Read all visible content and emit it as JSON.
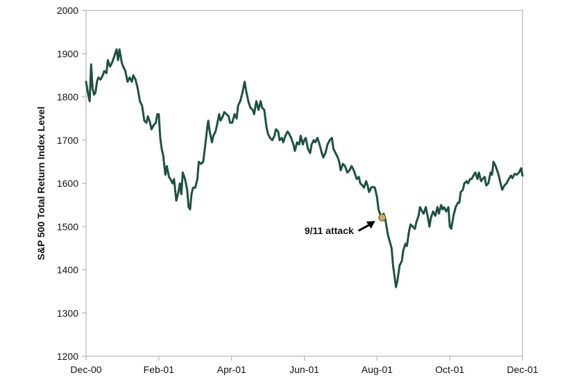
{
  "chart_data": {
    "type": "line",
    "title": "",
    "xlabel": "",
    "ylabel": "S&P 500 Total Return Index Level",
    "ylim": [
      1200,
      2000
    ],
    "yticks": [
      1200,
      1300,
      1400,
      1500,
      1600,
      1700,
      1800,
      1900,
      2000
    ],
    "xlim": [
      0,
      12
    ],
    "xticks": [
      {
        "value": 0,
        "label": "Dec-00"
      },
      {
        "value": 2,
        "label": "Feb-01"
      },
      {
        "value": 4,
        "label": "Apr-01"
      },
      {
        "value": 6,
        "label": "Jun-01"
      },
      {
        "value": 8,
        "label": "Aug-01"
      },
      {
        "value": 10,
        "label": "Oct-01"
      },
      {
        "value": 12,
        "label": "Dec-01"
      }
    ],
    "grid": false,
    "series": [
      {
        "name": "S&P 500 Total Return Index",
        "color": "#1d5141",
        "points": [
          [
            0.0,
            1835
          ],
          [
            0.06,
            1805
          ],
          [
            0.1,
            1790
          ],
          [
            0.14,
            1875
          ],
          [
            0.18,
            1820
          ],
          [
            0.22,
            1805
          ],
          [
            0.26,
            1810
          ],
          [
            0.3,
            1835
          ],
          [
            0.34,
            1845
          ],
          [
            0.4,
            1840
          ],
          [
            0.46,
            1850
          ],
          [
            0.5,
            1860
          ],
          [
            0.56,
            1855
          ],
          [
            0.6,
            1885
          ],
          [
            0.66,
            1870
          ],
          [
            0.72,
            1880
          ],
          [
            0.78,
            1895
          ],
          [
            0.84,
            1910
          ],
          [
            0.88,
            1885
          ],
          [
            0.92,
            1910
          ],
          [
            0.98,
            1880
          ],
          [
            1.02,
            1870
          ],
          [
            1.08,
            1860
          ],
          [
            1.14,
            1835
          ],
          [
            1.2,
            1845
          ],
          [
            1.26,
            1835
          ],
          [
            1.3,
            1850
          ],
          [
            1.36,
            1840
          ],
          [
            1.42,
            1820
          ],
          [
            1.48,
            1790
          ],
          [
            1.54,
            1780
          ],
          [
            1.6,
            1745
          ],
          [
            1.66,
            1740
          ],
          [
            1.7,
            1755
          ],
          [
            1.76,
            1740
          ],
          [
            1.8,
            1725
          ],
          [
            1.86,
            1735
          ],
          [
            1.92,
            1740
          ],
          [
            1.96,
            1760
          ],
          [
            2.0,
            1760
          ],
          [
            2.04,
            1705
          ],
          [
            2.08,
            1680
          ],
          [
            2.12,
            1665
          ],
          [
            2.18,
            1620
          ],
          [
            2.22,
            1640
          ],
          [
            2.28,
            1615
          ],
          [
            2.32,
            1610
          ],
          [
            2.38,
            1600
          ],
          [
            2.42,
            1610
          ],
          [
            2.48,
            1560
          ],
          [
            2.54,
            1580
          ],
          [
            2.58,
            1600
          ],
          [
            2.62,
            1575
          ],
          [
            2.66,
            1625
          ],
          [
            2.72,
            1610
          ],
          [
            2.78,
            1585
          ],
          [
            2.82,
            1545
          ],
          [
            2.86,
            1540
          ],
          [
            2.9,
            1575
          ],
          [
            2.94,
            1590
          ],
          [
            3.0,
            1590
          ],
          [
            3.06,
            1610
          ],
          [
            3.1,
            1650
          ],
          [
            3.16,
            1645
          ],
          [
            3.22,
            1650
          ],
          [
            3.28,
            1690
          ],
          [
            3.32,
            1720
          ],
          [
            3.36,
            1745
          ],
          [
            3.4,
            1720
          ],
          [
            3.46,
            1695
          ],
          [
            3.5,
            1710
          ],
          [
            3.56,
            1720
          ],
          [
            3.6,
            1735
          ],
          [
            3.66,
            1760
          ],
          [
            3.7,
            1745
          ],
          [
            3.76,
            1755
          ],
          [
            3.8,
            1765
          ],
          [
            3.86,
            1760
          ],
          [
            3.92,
            1755
          ],
          [
            3.96,
            1740
          ],
          [
            4.02,
            1740
          ],
          [
            4.08,
            1760
          ],
          [
            4.14,
            1750
          ],
          [
            4.18,
            1780
          ],
          [
            4.24,
            1790
          ],
          [
            4.3,
            1810
          ],
          [
            4.36,
            1835
          ],
          [
            4.4,
            1815
          ],
          [
            4.46,
            1790
          ],
          [
            4.52,
            1775
          ],
          [
            4.58,
            1770
          ],
          [
            4.62,
            1760
          ],
          [
            4.68,
            1790
          ],
          [
            4.74,
            1770
          ],
          [
            4.8,
            1790
          ],
          [
            4.84,
            1775
          ],
          [
            4.9,
            1770
          ],
          [
            4.96,
            1730
          ],
          [
            5.0,
            1715
          ],
          [
            5.06,
            1705
          ],
          [
            5.12,
            1700
          ],
          [
            5.18,
            1710
          ],
          [
            5.22,
            1725
          ],
          [
            5.28,
            1720
          ],
          [
            5.32,
            1700
          ],
          [
            5.38,
            1705
          ],
          [
            5.42,
            1695
          ],
          [
            5.48,
            1710
          ],
          [
            5.54,
            1720
          ],
          [
            5.58,
            1715
          ],
          [
            5.64,
            1705
          ],
          [
            5.7,
            1690
          ],
          [
            5.74,
            1675
          ],
          [
            5.8,
            1695
          ],
          [
            5.86,
            1690
          ],
          [
            5.9,
            1710
          ],
          [
            5.96,
            1690
          ],
          [
            6.0,
            1700
          ],
          [
            6.04,
            1705
          ],
          [
            6.1,
            1680
          ],
          [
            6.16,
            1670
          ],
          [
            6.2,
            1690
          ],
          [
            6.26,
            1700
          ],
          [
            6.3,
            1695
          ],
          [
            6.36,
            1705
          ],
          [
            6.42,
            1690
          ],
          [
            6.48,
            1670
          ],
          [
            6.52,
            1660
          ],
          [
            6.58,
            1670
          ],
          [
            6.64,
            1690
          ],
          [
            6.7,
            1700
          ],
          [
            6.76,
            1705
          ],
          [
            6.8,
            1680
          ],
          [
            6.86,
            1670
          ],
          [
            6.92,
            1660
          ],
          [
            6.96,
            1650
          ],
          [
            7.0,
            1630
          ],
          [
            7.06,
            1645
          ],
          [
            7.12,
            1640
          ],
          [
            7.18,
            1625
          ],
          [
            7.24,
            1630
          ],
          [
            7.3,
            1640
          ],
          [
            7.36,
            1630
          ],
          [
            7.4,
            1620
          ],
          [
            7.44,
            1610
          ],
          [
            7.5,
            1615
          ],
          [
            7.54,
            1600
          ],
          [
            7.6,
            1595
          ],
          [
            7.64,
            1590
          ],
          [
            7.7,
            1605
          ],
          [
            7.74,
            1595
          ],
          [
            7.78,
            1580
          ],
          [
            7.84,
            1590
          ],
          [
            7.88,
            1592
          ],
          [
            7.94,
            1590
          ],
          [
            8.0,
            1568
          ],
          [
            8.04,
            1540
          ],
          [
            8.08,
            1530
          ],
          [
            8.14,
            1522
          ],
          [
            8.18,
            1530
          ],
          [
            8.22,
            1520
          ],
          [
            8.26,
            1500
          ],
          [
            8.3,
            1480
          ],
          [
            8.36,
            1462
          ],
          [
            8.4,
            1450
          ],
          [
            8.44,
            1410
          ],
          [
            8.48,
            1385
          ],
          [
            8.52,
            1360
          ],
          [
            8.56,
            1375
          ],
          [
            8.62,
            1410
          ],
          [
            8.68,
            1420
          ],
          [
            8.72,
            1445
          ],
          [
            8.78,
            1460
          ],
          [
            8.82,
            1455
          ],
          [
            8.88,
            1490
          ],
          [
            8.92,
            1505
          ],
          [
            8.98,
            1500
          ],
          [
            9.04,
            1495
          ],
          [
            9.08,
            1510
          ],
          [
            9.14,
            1525
          ],
          [
            9.18,
            1545
          ],
          [
            9.24,
            1535
          ],
          [
            9.28,
            1530
          ],
          [
            9.34,
            1545
          ],
          [
            9.4,
            1520
          ],
          [
            9.44,
            1500
          ],
          [
            9.48,
            1520
          ],
          [
            9.54,
            1535
          ],
          [
            9.6,
            1525
          ],
          [
            9.66,
            1545
          ],
          [
            9.7,
            1530
          ],
          [
            9.76,
            1550
          ],
          [
            9.8,
            1540
          ],
          [
            9.84,
            1545
          ],
          [
            9.9,
            1535
          ],
          [
            9.96,
            1545
          ],
          [
            10.0,
            1500
          ],
          [
            10.04,
            1495
          ],
          [
            10.1,
            1525
          ],
          [
            10.16,
            1545
          ],
          [
            10.22,
            1555
          ],
          [
            10.26,
            1555
          ],
          [
            10.3,
            1580
          ],
          [
            10.36,
            1585
          ],
          [
            10.4,
            1600
          ],
          [
            10.46,
            1605
          ],
          [
            10.5,
            1600
          ],
          [
            10.56,
            1610
          ],
          [
            10.6,
            1610
          ],
          [
            10.66,
            1620
          ],
          [
            10.7,
            1625
          ],
          [
            10.76,
            1610
          ],
          [
            10.8,
            1625
          ],
          [
            10.86,
            1605
          ],
          [
            10.9,
            1610
          ],
          [
            10.96,
            1615
          ],
          [
            11.0,
            1595
          ],
          [
            11.06,
            1600
          ],
          [
            11.12,
            1625
          ],
          [
            11.16,
            1620
          ],
          [
            11.2,
            1650
          ],
          [
            11.26,
            1640
          ],
          [
            11.3,
            1630
          ],
          [
            11.34,
            1620
          ],
          [
            11.38,
            1605
          ],
          [
            11.44,
            1585
          ],
          [
            11.5,
            1595
          ],
          [
            11.56,
            1600
          ],
          [
            11.62,
            1610
          ],
          [
            11.68,
            1618
          ],
          [
            11.72,
            1612
          ],
          [
            11.78,
            1622
          ],
          [
            11.84,
            1620
          ],
          [
            11.9,
            1625
          ],
          [
            11.96,
            1635
          ],
          [
            12.0,
            1618
          ]
        ]
      }
    ],
    "annotations": [
      {
        "label": "9/11 attack",
        "x": 8.14,
        "y": 1521,
        "marker_color": "#c8a86a",
        "arrow": true
      }
    ]
  }
}
